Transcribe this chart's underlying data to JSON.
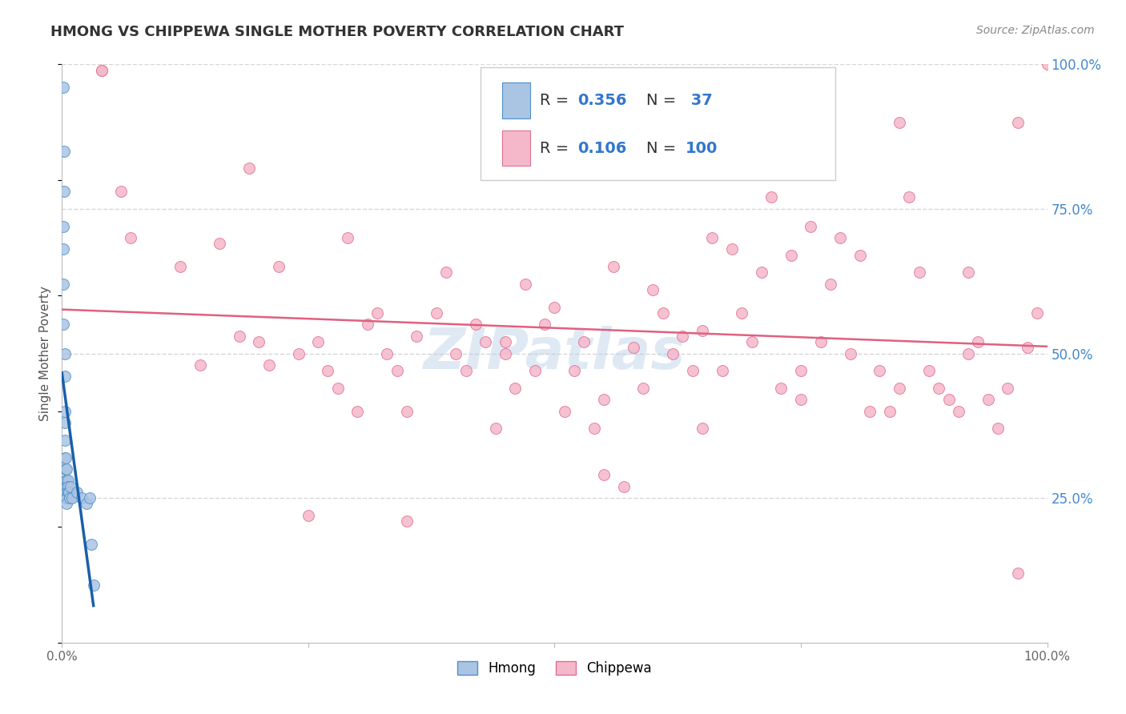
{
  "title": "HMONG VS CHIPPEWA SINGLE MOTHER POVERTY CORRELATION CHART",
  "source": "Source: ZipAtlas.com",
  "ylabel": "Single Mother Poverty",
  "watermark": "ZIPatlas",
  "hmong_R": 0.356,
  "hmong_N": 37,
  "chippewa_R": 0.106,
  "chippewa_N": 100,
  "hmong_color": "#aac4e4",
  "hmong_edge_color": "#5090c8",
  "hmong_line_color": "#1a5fa8",
  "hmong_dash_color": "#6aaad8",
  "chippewa_color": "#f5b8cb",
  "chippewa_edge_color": "#e07090",
  "chippewa_line_color": "#e06080",
  "ytick_labels_right": [
    "25.0%",
    "50.0%",
    "75.0%",
    "100.0%"
  ],
  "ytick_values_right": [
    0.25,
    0.5,
    0.75,
    1.0
  ],
  "background_color": "#ffffff",
  "grid_color": "#dddddd",
  "grid_dash_color": "#cccccc",
  "title_fontsize": 13,
  "source_fontsize": 10,
  "legend_fontsize": 14,
  "axis_label_fontsize": 11,
  "watermark_fontsize": 52,
  "marker_size": 100
}
